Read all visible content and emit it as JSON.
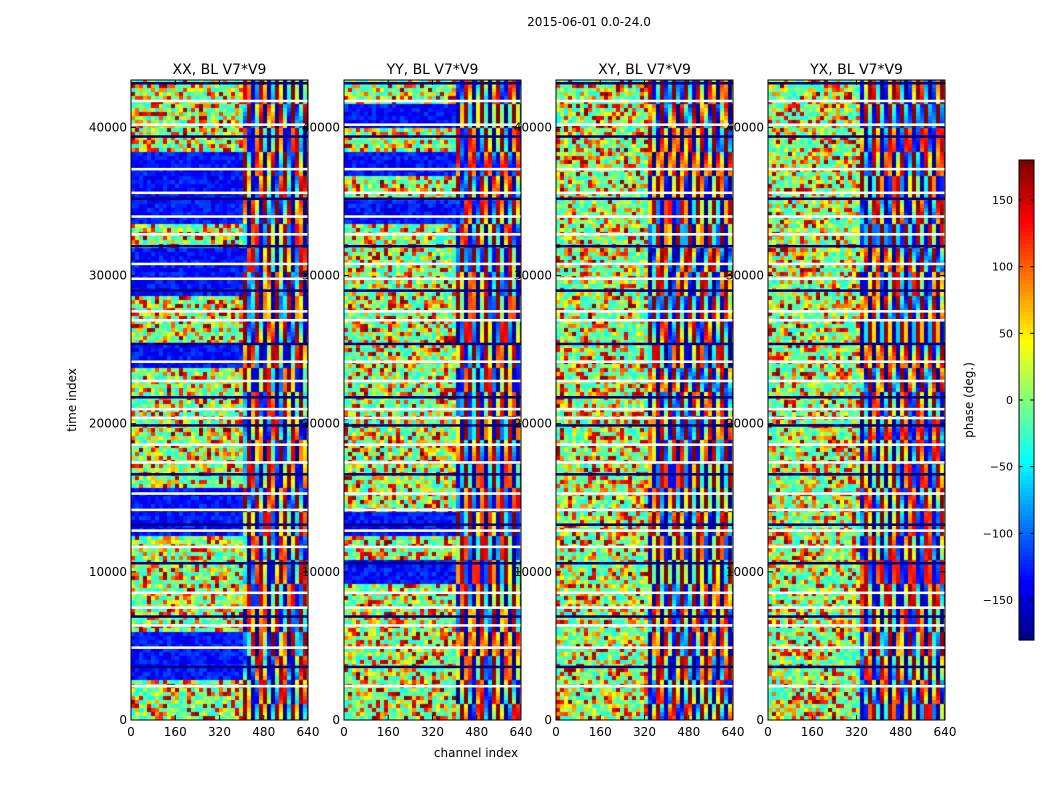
{
  "chart_data": {
    "type": "heatmap",
    "suptitle": "2015-06-01 0.0-24.0",
    "xlabel": "channel index",
    "ylabel": "time index",
    "xlim": [
      0,
      640
    ],
    "ylim": [
      0,
      43200
    ],
    "xticks": [
      0,
      160,
      320,
      480,
      640
    ],
    "yticks": [
      0,
      10000,
      20000,
      30000,
      40000
    ],
    "panels": [
      {
        "title": "XX, BL V7*V9",
        "polarization": "XX",
        "fringe_start_channel": 400,
        "blue_low_channels": true
      },
      {
        "title": "YY, BL V7*V9",
        "polarization": "YY",
        "fringe_start_channel": 400,
        "blue_low_channels": true
      },
      {
        "title": "XY, BL V7*V9",
        "polarization": "XY",
        "fringe_start_channel": 320,
        "blue_low_channels": false
      },
      {
        "title": "YX, BL V7*V9",
        "polarization": "YX",
        "fringe_start_channel": 320,
        "blue_low_channels": false
      }
    ],
    "colorbar": {
      "label": "phase (deg.)",
      "range": [
        -180,
        180
      ],
      "ticks": [
        150,
        100,
        50,
        0,
        -50,
        -100,
        -150
      ],
      "tick_labels": [
        "150",
        "100",
        "50",
        "0",
        "−50",
        "−100",
        "−150"
      ],
      "colormap": "jet"
    },
    "gap_rows_time_index": [
      43000,
      41800,
      40200,
      39400,
      37200,
      35600,
      35200,
      34000,
      32800,
      32000,
      30800,
      29800,
      29000,
      27600,
      27000,
      25400,
      24200,
      22900,
      21800,
      21000,
      20400,
      19900,
      18600,
      17400,
      16600,
      15300,
      14200,
      13200,
      12800,
      11700,
      10600,
      8600,
      7600,
      7000,
      6400,
      4900,
      3600,
      2300
    ]
  }
}
